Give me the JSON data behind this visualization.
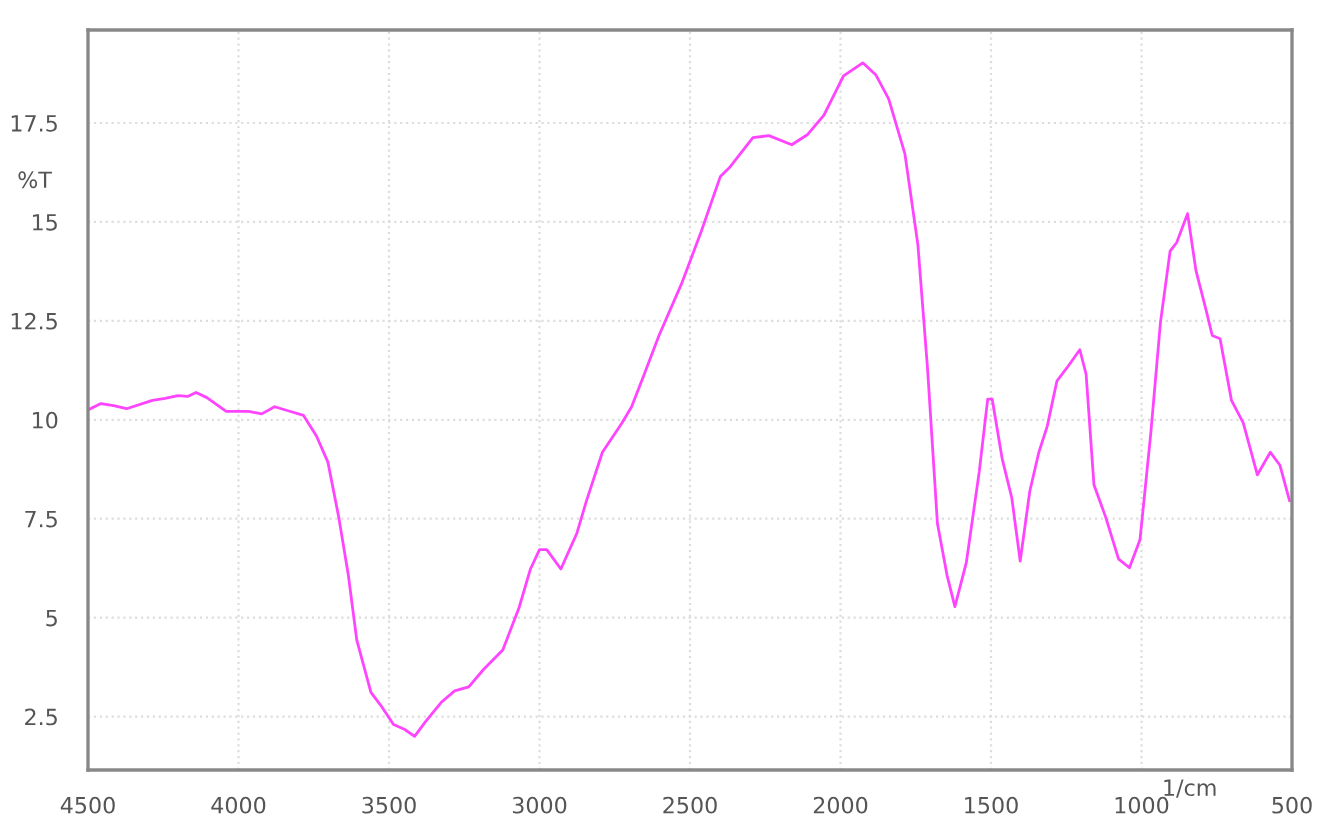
{
  "chart_data": {
    "type": "line",
    "xlabel": "1/cm",
    "ylabel": "%T",
    "x": [
      4500,
      4457,
      4415,
      4372,
      4286,
      4244,
      4201,
      4169,
      4141,
      4105,
      4041,
      3966,
      3923,
      3880,
      3827,
      3784,
      3741,
      3703,
      3667,
      3635,
      3607,
      3560,
      3528,
      3485,
      3449,
      3415,
      3378,
      3325,
      3282,
      3235,
      3186,
      3122,
      3068,
      3030,
      3000,
      2976,
      2929,
      2876,
      2844,
      2791,
      2726,
      2694,
      2652,
      2603,
      2528,
      2463,
      2399,
      2367,
      2291,
      2238,
      2162,
      2109,
      2055,
      1990,
      1926,
      1883,
      1840,
      1786,
      1743,
      1711,
      1678,
      1646,
      1620,
      1582,
      1539,
      1511,
      1496,
      1463,
      1431,
      1403,
      1371,
      1341,
      1313,
      1281,
      1248,
      1205,
      1184,
      1158,
      1119,
      1076,
      1040,
      1005,
      969,
      937,
      905,
      883,
      847,
      819,
      786,
      765,
      739,
      701,
      662,
      615,
      572,
      540,
      508
    ],
    "series": [
      {
        "color": "#ff44ff",
        "values": [
          10.25,
          10.41,
          10.36,
          10.28,
          10.49,
          10.54,
          10.61,
          10.59,
          10.69,
          10.56,
          10.21,
          10.21,
          10.15,
          10.33,
          10.21,
          10.11,
          9.59,
          8.93,
          7.54,
          6.07,
          4.43,
          3.11,
          2.79,
          2.3,
          2.18,
          2.0,
          2.38,
          2.87,
          3.15,
          3.25,
          3.69,
          4.18,
          5.25,
          6.23,
          6.72,
          6.72,
          6.23,
          7.13,
          7.95,
          9.18,
          9.92,
          10.33,
          11.15,
          12.13,
          13.44,
          14.75,
          16.15,
          16.39,
          17.13,
          17.18,
          16.95,
          17.21,
          17.7,
          18.69,
          19.02,
          18.72,
          18.11,
          16.72,
          14.43,
          11.31,
          7.38,
          6.07,
          5.28,
          6.39,
          8.69,
          10.52,
          10.52,
          9.02,
          8.03,
          6.43,
          8.2,
          9.18,
          9.84,
          10.98,
          11.31,
          11.77,
          11.15,
          8.36,
          7.54,
          6.48,
          6.26,
          6.97,
          9.67,
          12.46,
          14.26,
          14.48,
          15.21,
          13.77,
          12.79,
          12.13,
          12.05,
          10.49,
          9.92,
          8.61,
          9.18,
          8.85,
          7.95
        ]
      }
    ],
    "xlim": [
      4500,
      500
    ],
    "ylim": [
      1.15,
      19.85
    ],
    "xticks": [
      4500,
      4000,
      3500,
      3000,
      2500,
      2000,
      1500,
      1000,
      500
    ],
    "yticks": [
      2.5,
      5,
      7.5,
      10,
      12.5,
      15,
      17.5
    ],
    "grid": true,
    "marker": "none",
    "line_style": "solid"
  }
}
